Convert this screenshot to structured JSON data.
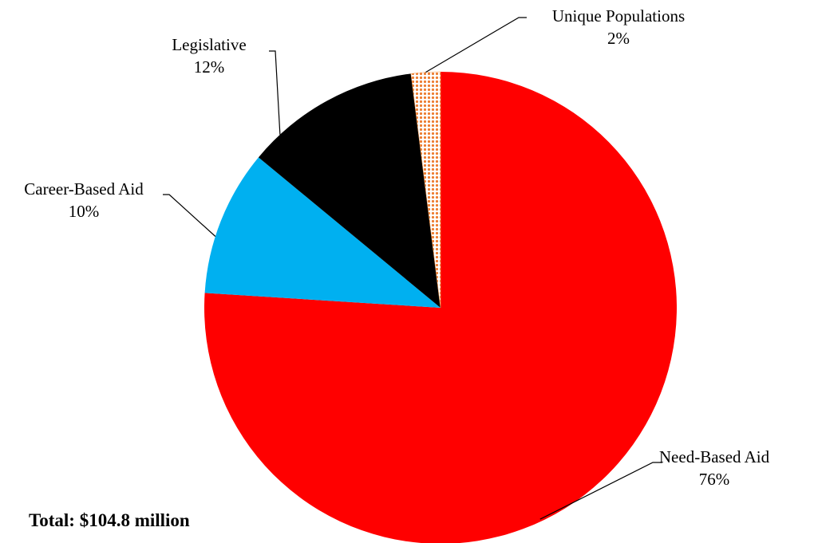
{
  "chart_data": {
    "type": "pie",
    "start_angle_deg": 0,
    "direction": "clockwise",
    "slices": [
      {
        "label": "Need-Based Aid",
        "percent_label": "76%",
        "value": 76,
        "color": "#ff0000",
        "pattern": "none"
      },
      {
        "label": "Career-Based Aid",
        "percent_label": "10%",
        "value": 10,
        "color": "#00b0f0",
        "pattern": "none"
      },
      {
        "label": "Legislative",
        "percent_label": "12%",
        "value": 12,
        "color": "#000000",
        "pattern": "none"
      },
      {
        "label": "Unique Populations",
        "percent_label": "2%",
        "value": 2,
        "color": "#f4a460",
        "pattern": "dots"
      }
    ],
    "legend": "none",
    "annotation": "Total: $104.8 million"
  }
}
